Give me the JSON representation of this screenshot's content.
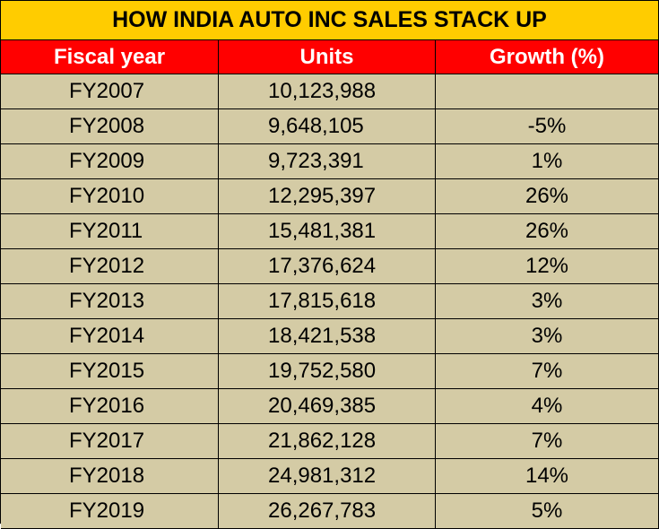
{
  "chart_data": {
    "type": "table",
    "title": "HOW INDIA AUTO INC SALES STACK UP",
    "columns": [
      "Fiscal year",
      "Units",
      "Growth (%)"
    ],
    "rows": [
      [
        "FY2007",
        "10,123,988",
        ""
      ],
      [
        "FY2008",
        "9,648,105",
        "-5%"
      ],
      [
        "FY2009",
        "9,723,391",
        "1%"
      ],
      [
        "FY2010",
        "12,295,397",
        "26%"
      ],
      [
        "FY2011",
        "15,481,381",
        "26%"
      ],
      [
        "FY2012",
        "17,376,624",
        "12%"
      ],
      [
        "FY2013",
        "17,815,618",
        "3%"
      ],
      [
        "FY2014",
        "18,421,538",
        "3%"
      ],
      [
        "FY2015",
        "19,752,580",
        "7%"
      ],
      [
        "FY2016",
        "20,469,385",
        "4%"
      ],
      [
        "FY2017",
        "21,862,128",
        "7%"
      ],
      [
        "FY2018",
        "24,981,312",
        "14%"
      ],
      [
        "FY2019",
        "26,267,783",
        "5%"
      ]
    ]
  },
  "colors": {
    "title_bg": "#FFCC00",
    "header_bg": "#FF0000",
    "header_text": "#FFFFFF",
    "row_bg": "#D4CBA5"
  }
}
